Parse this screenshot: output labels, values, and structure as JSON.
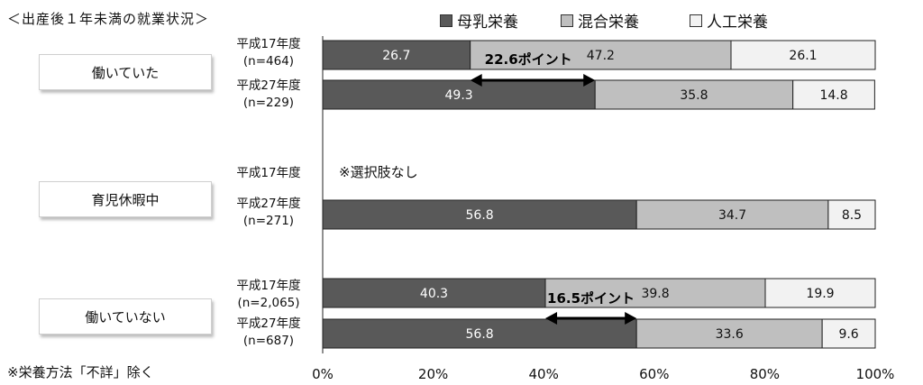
{
  "header": {
    "title": "＜出産後１年未満の就業状況＞"
  },
  "legend": [
    {
      "label": "母乳栄養",
      "color": "#595959"
    },
    {
      "label": "混合栄養",
      "color": "#bfbfbf"
    },
    {
      "label": "人工栄養",
      "color": "#f2f2f2"
    }
  ],
  "groups": [
    {
      "label": "働いていた"
    },
    {
      "label": "育児休暇中"
    },
    {
      "label": "働いていない"
    }
  ],
  "rows": [
    {
      "year": "平成17年度",
      "n": "(n=464)"
    },
    {
      "year": "平成27年度",
      "n": "(n=229)"
    },
    {
      "year": "平成17年度",
      "n": ""
    },
    {
      "year": "平成27年度",
      "n": "(n=271)"
    },
    {
      "year": "平成17年度",
      "n": "(n=2,065)"
    },
    {
      "year": "平成27年度",
      "n": "(n=687)"
    }
  ],
  "annotations": {
    "no_option": "※選択肢なし",
    "diff1": "22.6ポイント",
    "diff2": "16.5ポイント"
  },
  "footnote": "※栄養方法「不詳」除く",
  "chart_data": {
    "type": "bar",
    "orientation": "horizontal",
    "stacked": true,
    "categories": [
      "働いていた 平成17年度",
      "働いていた 平成27年度",
      "育児休暇中 平成17年度",
      "育児休暇中 平成27年度",
      "働いていない 平成17年度",
      "働いていない 平成27年度"
    ],
    "series": [
      {
        "name": "母乳栄養",
        "values": [
          26.7,
          49.3,
          null,
          56.8,
          40.3,
          56.8
        ]
      },
      {
        "name": "混合栄養",
        "values": [
          47.2,
          35.8,
          null,
          34.7,
          39.8,
          33.6
        ]
      },
      {
        "name": "人工栄養",
        "values": [
          26.1,
          14.8,
          null,
          8.5,
          19.9,
          9.6
        ]
      }
    ],
    "x_ticks": [
      "0%",
      "20%",
      "40%",
      "60%",
      "80%",
      "100%"
    ],
    "xlim": [
      0,
      100
    ],
    "grid": false,
    "legend_position": "top"
  }
}
